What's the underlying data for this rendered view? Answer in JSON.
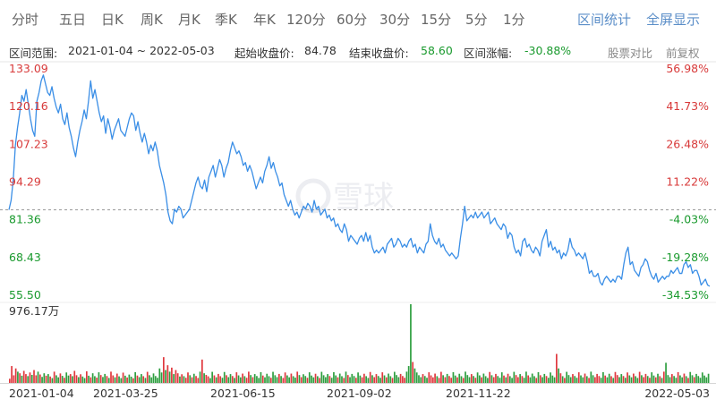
{
  "tabs": [
    "分时",
    "五日",
    "日K",
    "周K",
    "月K",
    "季K",
    "年K",
    "120分",
    "60分",
    "30分",
    "15分",
    "5分",
    "1分"
  ],
  "right_tabs": [
    "区间统计",
    "全屏显示"
  ],
  "info": {
    "range_label": "区间范围:",
    "range_value": "2021-01-04 ~ 2022-05-03",
    "start_label": "起始收盘价:",
    "start_value": "84.78",
    "end_label": "结束收盘价:",
    "end_value": "58.60",
    "change_label": "区间涨幅:",
    "change_value": "-30.88%",
    "compare_link": "股票对比",
    "adjust_link": "前复权"
  },
  "watermark": "雪球",
  "colors": {
    "line": "#3a8ee6",
    "up": "#e0383e",
    "down": "#2e9e3f",
    "text_red": "#d83a3a",
    "text_green": "#1a9a2e"
  },
  "chart_data": {
    "type": "line",
    "price_axis": {
      "labels": [
        "133.09",
        "120.16",
        "107.23",
        "94.29",
        "81.36",
        "68.43",
        "55.50"
      ],
      "values": [
        133.09,
        120.16,
        107.23,
        94.29,
        81.36,
        68.43,
        55.5
      ],
      "range": [
        55.5,
        133.09
      ]
    },
    "pct_axis": {
      "labels": [
        "56.98%",
        "41.73%",
        "26.48%",
        "11.22%",
        "-4.03%",
        "-19.28%",
        "-34.53%"
      ],
      "values": [
        56.98,
        41.73,
        26.48,
        11.22,
        -4.03,
        -19.28,
        -34.53
      ]
    },
    "reference_price": 84.78,
    "volume_max_label": "976.17万",
    "volume_max": 976.17,
    "x_ticks": [
      "2021-01-04",
      "2021-03-25",
      "2021-06-15",
      "2021-09-02",
      "2021-11-22",
      "2022-05-03"
    ],
    "series": [
      {
        "values": [
          84.8,
          88,
          95,
          107,
          113,
          118,
          124,
          122,
          126,
          121,
          116,
          112,
          110,
          122,
          125,
          129,
          131,
          128,
          125,
          124,
          127,
          123,
          120,
          118,
          121,
          116,
          114,
          118,
          113,
          110,
          106,
          103,
          108,
          112,
          115,
          119,
          116,
          122,
          129,
          123,
          126,
          122,
          118,
          115,
          117,
          111,
          116,
          113,
          109,
          112,
          114,
          116,
          112,
          111,
          110,
          113,
          116,
          118,
          117,
          112,
          115,
          111,
          108,
          111,
          108,
          104,
          107,
          105,
          108,
          105,
          100,
          97,
          94,
          90,
          84,
          81,
          80,
          85,
          84,
          86,
          85,
          82,
          83,
          84,
          85,
          88,
          91,
          94,
          96,
          93,
          92,
          95,
          91,
          96,
          98,
          100,
          96,
          99,
          102,
          100,
          96,
          99,
          101,
          105,
          108,
          106,
          104,
          105,
          103,
          100,
          101,
          98,
          100,
          98,
          95,
          92,
          94,
          96,
          94,
          98,
          100,
          103,
          99,
          101,
          98,
          96,
          93,
          94,
          90,
          88,
          86,
          88,
          85,
          83,
          84,
          82,
          84,
          86,
          85,
          87,
          86,
          84,
          88,
          85,
          86,
          83,
          84,
          85,
          82,
          83,
          81,
          82,
          79,
          80,
          78,
          77,
          80,
          78,
          74,
          76,
          75,
          74,
          73,
          75,
          76,
          74,
          77,
          74,
          76,
          72,
          70,
          71,
          70,
          71,
          72,
          70,
          73,
          74,
          75,
          72,
          73,
          75,
          74,
          72,
          73,
          72,
          74,
          75,
          72,
          73,
          70,
          72,
          71,
          70,
          73,
          74,
          80,
          76,
          74,
          73,
          75,
          72,
          73,
          71,
          70,
          69,
          70,
          69,
          68,
          69,
          75,
          80,
          86,
          81,
          82,
          83,
          82,
          84,
          82,
          83,
          84,
          82,
          83,
          84,
          80,
          81,
          82,
          80,
          79,
          78,
          80,
          79,
          75,
          77,
          76,
          72,
          70,
          71,
          69,
          74,
          75,
          72,
          73,
          71,
          70,
          72,
          71,
          69,
          74,
          76,
          78,
          72,
          74,
          71,
          72,
          70,
          71,
          68,
          70,
          69,
          71,
          75,
          72,
          71,
          69,
          70,
          69,
          68,
          70,
          67,
          63,
          64,
          62,
          62,
          63,
          60,
          59,
          61,
          62,
          61,
          60,
          61,
          60,
          62,
          62,
          61,
          66,
          70,
          72,
          66,
          67,
          64,
          63,
          62,
          65,
          66,
          68,
          67,
          64,
          62,
          61,
          63,
          60,
          61,
          62,
          61,
          62,
          62,
          64,
          63,
          64,
          65,
          63,
          63,
          66,
          67,
          65,
          66,
          63,
          64,
          64,
          62,
          59,
          60,
          61,
          59,
          58.6
        ]
      }
    ],
    "volume": {
      "values": [
        52,
        210,
        95,
        180,
        140,
        120,
        90,
        150,
        110,
        85,
        130,
        100,
        160,
        95,
        140,
        105,
        75,
        120,
        90,
        110,
        80,
        60,
        140,
        95,
        70,
        118,
        88,
        64,
        130,
        92,
        110,
        84,
        150,
        96,
        72,
        108,
        80,
        60,
        144,
        90,
        70,
        120,
        84,
        66,
        132,
        98,
        74,
        112,
        86,
        62,
        140,
        94,
        70,
        116,
        82,
        60,
        128,
        90,
        68,
        104,
        78,
        58,
        134,
        92,
        72,
        110,
        84,
        62,
        138,
        96,
        70,
        118,
        86,
        64,
        180,
        130,
        320,
        160,
        220,
        140,
        190,
        110,
        160,
        120,
        80,
        108,
        84,
        64,
        130,
        96,
        70,
        114,
        86,
        62,
        140,
        290,
        120,
        100,
        82,
        60,
        138,
        94,
        70,
        112,
        84,
        64,
        136,
        96,
        72,
        110,
        86,
        62,
        132,
        94,
        70,
        116,
        84,
        64,
        140,
        98,
        72,
        110,
        86,
        62,
        134,
        92,
        70,
        114,
        84,
        64,
        138,
        96,
        72,
        112,
        86,
        62,
        130,
        94,
        70,
        116,
        84,
        66,
        140,
        98,
        72,
        108,
        86,
        64,
        132,
        92,
        70,
        114,
        84,
        62,
        138,
        96,
        72,
        110,
        86,
        64,
        134,
        94,
        70,
        116,
        84,
        62,
        140,
        98,
        72,
        112,
        86,
        64,
        130,
        92,
        70,
        114,
        84,
        62,
        136,
        96,
        72,
        110,
        86,
        64,
        132,
        94,
        70,
        116,
        84,
        62,
        138,
        98,
        72,
        112,
        86,
        64,
        140,
        210,
        976,
        260,
        180,
        130,
        96,
        72,
        110,
        86,
        64,
        132,
        94,
        70,
        116,
        84,
        62,
        138,
        96,
        72,
        112,
        86,
        64,
        134,
        92,
        70,
        114,
        84,
        62,
        140,
        98,
        72,
        110,
        86,
        64,
        130,
        94,
        70,
        116,
        84,
        62,
        136,
        96,
        72,
        112,
        86,
        64,
        132,
        92,
        70,
        114,
        84,
        62,
        138,
        98,
        72,
        110,
        86,
        64,
        140,
        94,
        70,
        116,
        84,
        62,
        134,
        96,
        72,
        112,
        86,
        64,
        130,
        92,
        70,
        360,
        180,
        120,
        84,
        62,
        138,
        98,
        72,
        110,
        86,
        64,
        132,
        94,
        70,
        116,
        84,
        62,
        140,
        96,
        72,
        112,
        86,
        64,
        134,
        92,
        70,
        114,
        84,
        62,
        136,
        98,
        72,
        110,
        86,
        64,
        130,
        94,
        70,
        116,
        84,
        62,
        138,
        96,
        72,
        112,
        86,
        64,
        132,
        92,
        70,
        114,
        84,
        62,
        140,
        250,
        98,
        72,
        110,
        86,
        64,
        134,
        94,
        70,
        116,
        84,
        62,
        136,
        96,
        72,
        112,
        86,
        64,
        130,
        92,
        70,
        114
      ],
      "up": [
        1,
        1,
        1,
        1,
        0,
        1,
        0,
        1,
        1,
        0,
        1,
        0,
        1,
        1,
        0,
        1,
        0,
        0,
        1,
        0,
        1,
        0,
        1,
        0,
        0,
        1,
        0,
        1,
        0,
        0,
        1,
        0,
        1,
        1,
        0,
        1,
        0,
        0,
        1,
        0,
        1,
        0,
        0,
        1,
        0,
        1,
        0,
        0,
        1,
        0,
        1,
        1,
        0,
        1,
        0,
        0,
        1,
        0,
        1,
        0,
        0,
        1,
        0,
        1,
        0,
        0,
        1,
        0,
        1,
        0,
        0,
        0,
        0,
        0,
        0,
        0,
        1,
        0,
        1,
        0,
        1,
        0,
        1,
        1,
        0,
        1,
        0,
        1,
        1,
        0,
        1,
        0,
        1,
        1,
        0,
        1,
        0,
        1,
        1,
        0,
        0,
        1,
        0,
        1,
        1,
        0,
        0,
        1,
        0,
        0,
        1,
        0,
        1,
        0,
        0,
        1,
        0,
        1,
        1,
        0,
        1,
        0,
        0,
        0,
        0,
        1,
        0,
        0,
        0,
        1,
        0,
        0,
        0,
        1,
        0,
        1,
        1,
        0,
        0,
        1,
        0,
        0,
        1,
        0,
        1,
        0,
        0,
        1,
        0,
        0,
        0,
        1,
        0,
        1,
        0,
        0,
        0,
        0,
        1,
        0,
        0,
        0,
        1,
        0,
        0,
        1,
        0,
        1,
        0,
        0,
        0,
        1,
        0,
        0,
        1,
        1,
        0,
        0,
        1,
        0,
        1,
        1,
        0,
        0,
        1,
        0,
        1,
        0,
        0,
        1,
        0,
        0,
        0,
        1,
        1,
        1,
        0,
        0,
        0,
        1,
        0,
        0,
        0,
        0,
        1,
        0,
        0,
        1,
        1,
        1,
        1,
        0,
        1,
        1,
        0,
        1,
        0,
        1,
        1,
        0,
        0,
        1,
        0,
        0,
        1,
        0,
        0,
        0,
        1,
        0,
        1,
        0,
        0,
        1,
        0,
        0,
        0,
        1,
        0,
        1,
        1,
        0,
        0,
        0,
        1,
        0,
        1,
        0,
        0,
        0,
        1,
        1,
        0,
        1,
        0,
        0,
        1,
        0,
        0,
        0,
        1,
        0,
        1,
        0,
        0,
        1,
        0,
        0,
        0,
        0,
        1,
        0,
        1,
        0,
        1,
        0,
        0,
        0,
        1,
        0,
        0,
        1,
        0,
        0,
        1,
        0,
        1,
        0,
        0,
        1,
        1,
        1,
        0,
        0,
        1,
        0,
        0,
        1,
        0,
        1,
        1,
        0,
        0,
        1,
        0,
        1,
        0,
        0,
        1,
        0,
        0,
        1,
        0,
        1,
        1,
        0,
        1,
        0,
        0,
        1,
        0,
        1,
        0,
        1,
        0,
        0,
        0,
        1,
        0,
        0,
        1,
        0,
        0,
        1,
        0,
        1,
        0,
        0,
        1,
        0,
        0
      ]
    }
  }
}
